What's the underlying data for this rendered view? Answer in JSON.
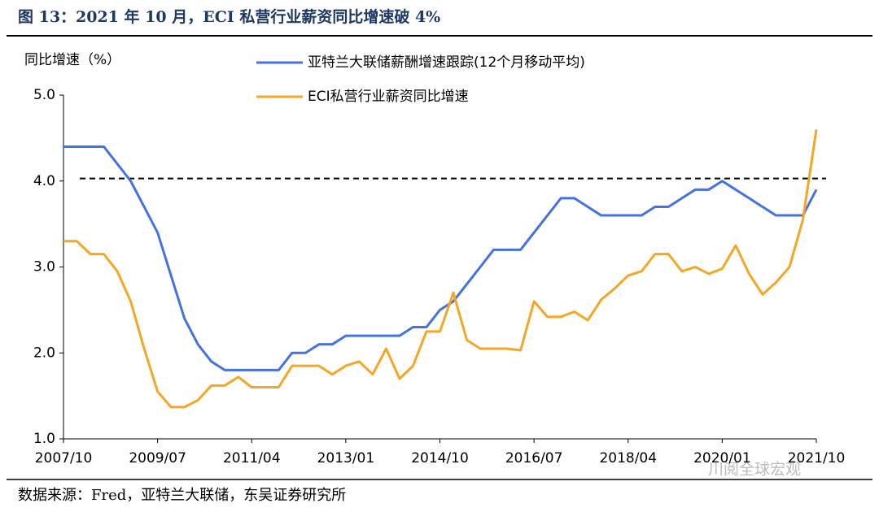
{
  "chart_data": {
    "type": "line",
    "title": "图 13：2021 年 10 月，ECI 私营行业薪资同比增速破 4%",
    "ylabel": "同比增速（%）",
    "source": "数据来源：Fred，亚特兰大联储，东吴证券研究所",
    "watermark": "川阅全球宏观",
    "x": [
      "2007/10",
      "2008/01",
      "2008/04",
      "2008/07",
      "2008/10",
      "2009/01",
      "2009/04",
      "2009/07",
      "2009/10",
      "2010/01",
      "2010/04",
      "2010/07",
      "2010/10",
      "2011/01",
      "2011/04",
      "2011/07",
      "2011/10",
      "2012/01",
      "2012/04",
      "2012/07",
      "2012/10",
      "2013/01",
      "2013/04",
      "2013/07",
      "2013/10",
      "2014/01",
      "2014/04",
      "2014/07",
      "2014/10",
      "2015/01",
      "2015/04",
      "2015/07",
      "2015/10",
      "2016/01",
      "2016/04",
      "2016/07",
      "2016/10",
      "2017/01",
      "2017/04",
      "2017/07",
      "2017/10",
      "2018/01",
      "2018/04",
      "2018/07",
      "2018/10",
      "2019/01",
      "2019/04",
      "2019/07",
      "2019/10",
      "2020/01",
      "2020/04",
      "2020/07",
      "2020/10",
      "2021/01",
      "2021/04",
      "2021/07",
      "2021/10"
    ],
    "xticks": [
      "2007/10",
      "2009/07",
      "2011/04",
      "2013/01",
      "2014/10",
      "2016/07",
      "2018/04",
      "2020/01",
      "2021/10"
    ],
    "series": [
      {
        "name": "亚特兰大联储薪酬增速跟踪(12个月移动平均)",
        "color": "#4472e4",
        "values": [
          4.4,
          4.4,
          4.4,
          4.4,
          4.2,
          4.0,
          3.7,
          3.4,
          2.9,
          2.4,
          2.1,
          1.9,
          1.8,
          1.8,
          1.8,
          1.8,
          1.8,
          2.0,
          2.0,
          2.1,
          2.1,
          2.2,
          2.2,
          2.2,
          2.2,
          2.2,
          2.3,
          2.3,
          2.5,
          2.6,
          2.8,
          3.0,
          3.2,
          3.2,
          3.2,
          3.4,
          3.6,
          3.8,
          3.8,
          3.7,
          3.6,
          3.6,
          3.6,
          3.6,
          3.7,
          3.7,
          3.8,
          3.9,
          3.9,
          4.0,
          3.9,
          3.8,
          3.7,
          3.6,
          3.6,
          3.6,
          3.9
        ]
      },
      {
        "name": "ECI私营行业薪资同比增速",
        "color": "#f5a623",
        "values": [
          3.3,
          3.3,
          3.15,
          3.15,
          2.95,
          2.6,
          2.05,
          1.55,
          1.37,
          1.37,
          1.45,
          1.62,
          1.62,
          1.72,
          1.6,
          1.6,
          1.6,
          1.85,
          1.85,
          1.85,
          1.75,
          1.85,
          1.9,
          1.75,
          2.05,
          1.7,
          1.85,
          2.25,
          2.25,
          2.7,
          2.15,
          2.05,
          2.05,
          2.05,
          2.03,
          2.6,
          2.42,
          2.42,
          2.48,
          2.38,
          2.62,
          2.75,
          2.9,
          2.95,
          3.15,
          3.15,
          2.95,
          3.0,
          2.92,
          2.98,
          3.25,
          2.92,
          2.68,
          2.82,
          3.0,
          3.55,
          4.6
        ]
      }
    ],
    "hline": 4.03,
    "ylim": [
      1,
      5
    ],
    "yticks": [
      {
        "value": 1,
        "label": "1.0"
      },
      {
        "value": 2,
        "label": "2.0"
      },
      {
        "value": 3,
        "label": "3.0"
      },
      {
        "value": 4,
        "label": "4.0"
      },
      {
        "value": 5,
        "label": "5.0"
      }
    ]
  }
}
